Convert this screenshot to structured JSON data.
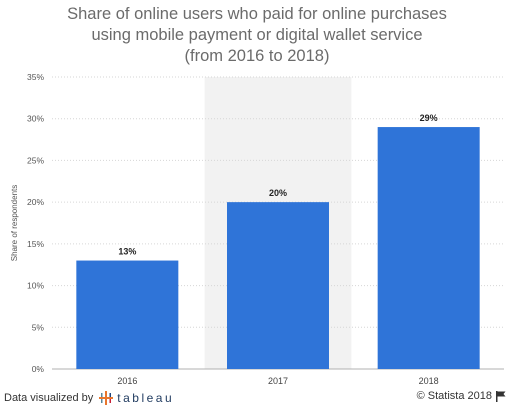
{
  "title_lines": [
    "Share of online users who paid for online purchases",
    "using mobile payment or digital wallet service",
    "(from 2016 to 2018)"
  ],
  "chart_data": {
    "type": "bar",
    "categories": [
      "2016",
      "2017",
      "2018"
    ],
    "values": [
      13,
      20,
      29
    ],
    "value_labels": [
      "13%",
      "20%",
      "29%"
    ],
    "title": "Share of online users who paid for online purchases using mobile payment or digital wallet service (from 2016 to 2018)",
    "xlabel": "",
    "ylabel": "Share of respondents",
    "ylim": [
      0,
      35
    ],
    "yticks": [
      0,
      5,
      10,
      15,
      20,
      25,
      30,
      35
    ],
    "ytick_labels": [
      "0%",
      "5%",
      "10%",
      "15%",
      "20%",
      "25%",
      "30%",
      "35%"
    ],
    "highlighted_category": "2017",
    "grid": true,
    "bar_color": "#2f74d8",
    "highlight_color": "#f2f2f2"
  },
  "footer": {
    "left_text": "Data visualized by",
    "tableau_text": "tableau",
    "right_text": "© Statista 2018"
  }
}
